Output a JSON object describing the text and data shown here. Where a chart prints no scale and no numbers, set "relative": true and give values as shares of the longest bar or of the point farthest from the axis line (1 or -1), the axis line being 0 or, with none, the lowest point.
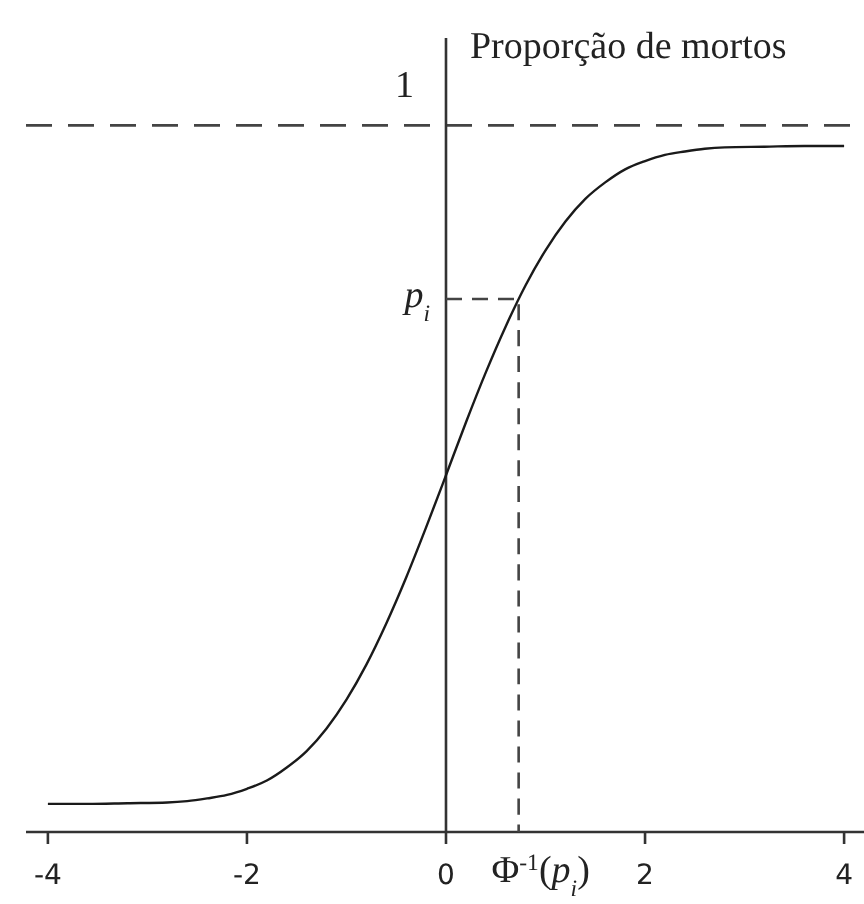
{
  "chart_data": {
    "type": "line",
    "ylabel": "Proporção de mortos",
    "relative": true,
    "xlim": [
      -4.22,
      4.2
    ],
    "xticks": [
      -4,
      -2,
      0,
      2,
      4
    ],
    "line_style": "solid",
    "series": [
      {
        "color": "#1a1a1a",
        "x": [
          -4,
          -3.6,
          -3.2,
          -2.8,
          -2.6,
          -2.4,
          -2.2,
          -2,
          -1.8,
          -1.6,
          -1.4,
          -1.2,
          -1,
          -0.8,
          -0.6,
          -0.4,
          -0.2,
          0,
          0.2,
          0.4,
          0.6,
          0.8,
          1,
          1.2,
          1.4,
          1.6,
          1.8,
          2,
          2.2,
          2.4,
          2.6,
          2.8,
          3.2,
          3.6,
          4
        ],
        "values": [
          0.041,
          0.041,
          0.042,
          0.043,
          0.045,
          0.049,
          0.054,
          0.063,
          0.075,
          0.094,
          0.118,
          0.151,
          0.193,
          0.244,
          0.304,
          0.371,
          0.444,
          0.52,
          0.597,
          0.67,
          0.737,
          0.797,
          0.848,
          0.89,
          0.923,
          0.947,
          0.966,
          0.978,
          0.987,
          0.992,
          0.996,
          0.998,
          0.999,
          1,
          1
        ]
      },
      {
        "color": "#444444",
        "line_style": "dashed",
        "x": [
          0,
          0.73,
          0.73
        ],
        "values": [
          0.777,
          0.777,
          0
        ]
      }
    ],
    "ref_lines": [
      {
        "axis": "y",
        "value": 1.03,
        "label": "1",
        "line_style": "dashed",
        "color": "#444444"
      }
    ],
    "annotations": [
      {
        "text": "p$_{i}$",
        "x": 0,
        "y": 0.777
      },
      {
        "text": "Φ$^{-1}$(p$_{i}$)",
        "x": 0.73,
        "y": 0
      }
    ]
  }
}
